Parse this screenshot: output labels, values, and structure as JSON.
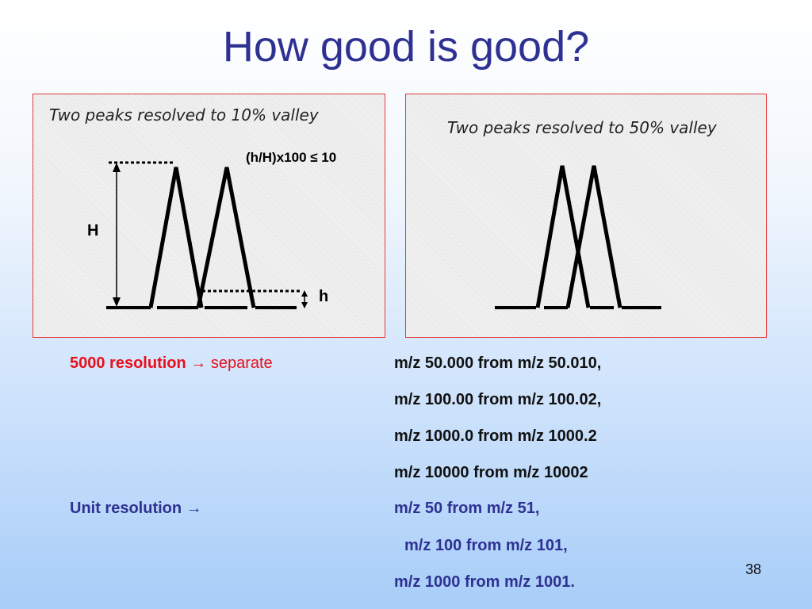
{
  "title": "How good is good?",
  "panels": {
    "left": {
      "caption": "Two peaks resolved to 10% valley",
      "formula": "(h/H)x100 ≤ 10",
      "label_H": "H",
      "label_h": "h"
    },
    "right": {
      "caption": "Two peaks resolved to 50% valley"
    }
  },
  "resolution_5000": {
    "label": "5000 resolution",
    "arrow": "→",
    "verb": "separate",
    "examples": [
      "m/z 50.000 from m/z 50.010,",
      "m/z 100.00 from m/z 100.02,",
      "m/z 1000.0 from m/z 1000.2",
      "m/z 10000 from m/z 10002"
    ]
  },
  "resolution_unit": {
    "label": "Unit resolution",
    "arrow": "→",
    "examples": [
      "m/z 50 from m/z 51,",
      "m/z 100 from m/z 101,",
      "m/z 1000 from m/z 1001."
    ]
  },
  "page_number": "38",
  "colors": {
    "title": "#2e3192",
    "accent_red": "#e8101c",
    "panel_border": "#e43a3a"
  }
}
